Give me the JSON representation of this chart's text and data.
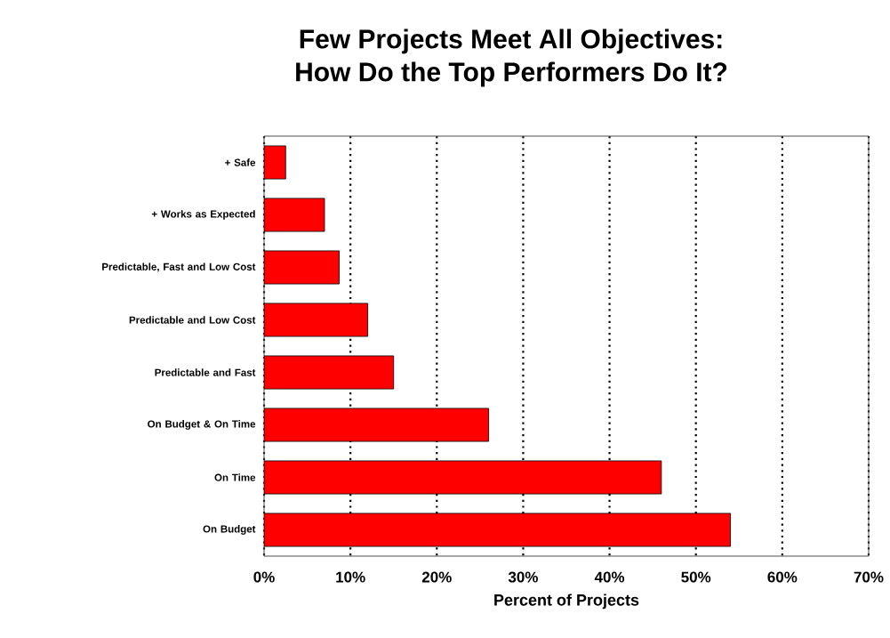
{
  "chart_data": {
    "type": "bar",
    "orientation": "horizontal",
    "title": "Few Projects Meet All Objectives:\nHow Do the Top Performers Do It?",
    "xlabel": "Percent of Projects",
    "categories": [
      "+ Safe",
      "+ Works as Expected",
      "Predictable, Fast and Low Cost",
      "Predictable and Low Cost",
      "Predictable and Fast",
      "On Budget & On Time",
      "On Time",
      "On Budget"
    ],
    "values": [
      2.5,
      7,
      8.7,
      12,
      15,
      26,
      46,
      54
    ],
    "color": "#ff0000",
    "xlim": [
      0,
      70
    ],
    "xticks": [
      {
        "value": 0,
        "label": "0%"
      },
      {
        "value": 10,
        "label": "10%"
      },
      {
        "value": 20,
        "label": "20%"
      },
      {
        "value": 30,
        "label": "30%"
      },
      {
        "value": 40,
        "label": "40%"
      },
      {
        "value": 50,
        "label": "50%"
      },
      {
        "value": 60,
        "label": "60%"
      },
      {
        "value": 70,
        "label": "70%"
      }
    ],
    "grid": "x"
  }
}
